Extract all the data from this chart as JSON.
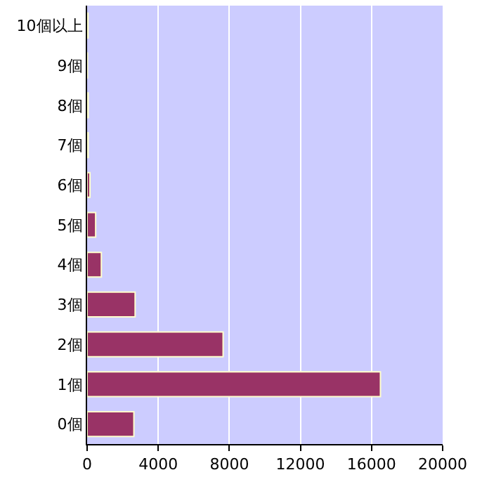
{
  "chart_data": {
    "type": "bar",
    "orientation": "horizontal",
    "categories": [
      "10個以上",
      "9個",
      "8個",
      "7個",
      "6個",
      "5個",
      "4個",
      "3個",
      "2個",
      "1個",
      "0個"
    ],
    "values": [
      50,
      20,
      60,
      60,
      160,
      480,
      800,
      2700,
      7650,
      16500,
      2630
    ],
    "color": "#993366",
    "xlim": [
      0,
      20000
    ],
    "xticks": [
      0,
      4000,
      8000,
      12000,
      16000,
      20000
    ],
    "grid": "x"
  }
}
